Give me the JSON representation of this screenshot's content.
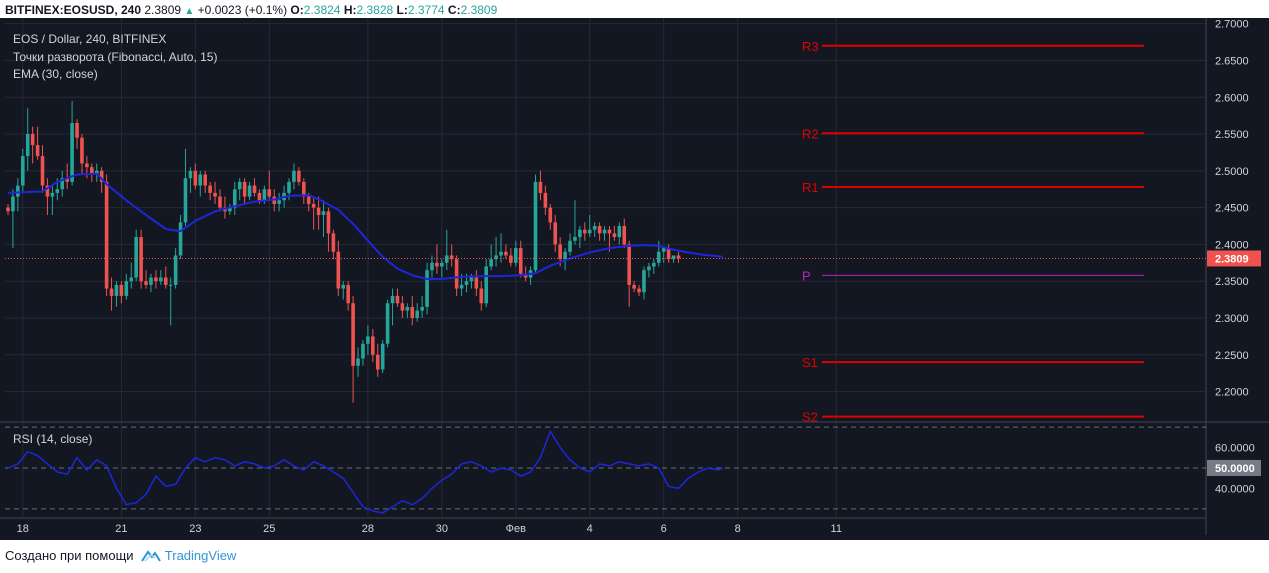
{
  "header": {
    "symbol": "BITFINEX:EOSUSD, 240",
    "last": "2.3809",
    "change": "+0.0023 (+0.1%)",
    "o_label": "O:",
    "o_val": "2.3824",
    "h_label": "H:",
    "h_val": "2.3828",
    "l_label": "L:",
    "l_val": "2.3774",
    "c_label": "C:",
    "c_val": "2.3809"
  },
  "overlay": {
    "line1": "EOS / Dollar, 240, BITFINEX",
    "line2": "Точки разворота (Fibonacci, Auto, 15)",
    "line3": "EMA (30, close)",
    "rsi_title": "RSI (14, close)"
  },
  "footer": {
    "created_with": "Создано при помощи",
    "brand": "TradingView"
  },
  "colors": {
    "background": "#131722",
    "up": "#26a69a",
    "down": "#ef5350",
    "ema": "#1e26d8",
    "rsi": "#1e26d8",
    "pivot_rs": "#e00000",
    "pivot_p": "#c020c0",
    "price_tag": "#ef5350",
    "rsi_tag": "#787b86"
  },
  "chart_data": {
    "type": "candlestick",
    "title": "EOS / Dollar, 240, BITFINEX",
    "price_axis": {
      "range": [
        2.16,
        2.705
      ],
      "ticks": [
        "2.7000",
        "2.6500",
        "2.6000",
        "2.5500",
        "2.5000",
        "2.4500",
        "2.4000",
        "2.3500",
        "2.3000",
        "2.2500",
        "2.2000"
      ],
      "tick_values": [
        2.7,
        2.65,
        2.6,
        2.55,
        2.5,
        2.45,
        2.4,
        2.35,
        2.3,
        2.25,
        2.2
      ]
    },
    "time_axis": {
      "labels": [
        "18",
        "21",
        "23",
        "25",
        "28",
        "30",
        "Фев",
        "4",
        "6",
        "8",
        "11"
      ],
      "label_index": [
        3,
        23,
        38,
        53,
        73,
        88,
        103,
        118,
        133,
        148,
        168
      ]
    },
    "last_price": 2.3809,
    "last_price_label": "2.3809",
    "pivots": [
      {
        "label": "R3",
        "value": 2.67
      },
      {
        "label": "R2",
        "value": 2.551
      },
      {
        "label": "R1",
        "value": 2.478
      },
      {
        "label": "P",
        "value": 2.358
      },
      {
        "label": "S1",
        "value": 2.24
      },
      {
        "label": "S2",
        "value": 2.166
      }
    ],
    "candles": [
      [
        2.45,
        2.455,
        2.44,
        2.445
      ],
      [
        2.445,
        2.475,
        2.395,
        2.465
      ],
      [
        2.465,
        2.49,
        2.445,
        2.48
      ],
      [
        2.48,
        2.53,
        2.47,
        2.52
      ],
      [
        2.52,
        2.585,
        2.5,
        2.55
      ],
      [
        2.55,
        2.56,
        2.51,
        2.535
      ],
      [
        2.535,
        2.56,
        2.515,
        2.52
      ],
      [
        2.52,
        2.535,
        2.47,
        2.48
      ],
      [
        2.48,
        2.49,
        2.44,
        2.465
      ],
      [
        2.465,
        2.48,
        2.44,
        2.47
      ],
      [
        2.47,
        2.49,
        2.46,
        2.475
      ],
      [
        2.475,
        2.5,
        2.465,
        2.49
      ],
      [
        2.49,
        2.51,
        2.475,
        2.485
      ],
      [
        2.485,
        2.595,
        2.48,
        2.565
      ],
      [
        2.565,
        2.57,
        2.53,
        2.545
      ],
      [
        2.545,
        2.55,
        2.495,
        2.51
      ],
      [
        2.51,
        2.52,
        2.49,
        2.505
      ],
      [
        2.505,
        2.51,
        2.485,
        2.495
      ],
      [
        2.495,
        2.51,
        2.485,
        2.5
      ],
      [
        2.5,
        2.505,
        2.47,
        2.485
      ],
      [
        2.485,
        2.495,
        2.33,
        2.34
      ],
      [
        2.34,
        2.355,
        2.31,
        2.33
      ],
      [
        2.33,
        2.35,
        2.315,
        2.345
      ],
      [
        2.345,
        2.35,
        2.32,
        2.33
      ],
      [
        2.33,
        2.36,
        2.325,
        2.35
      ],
      [
        2.35,
        2.375,
        2.34,
        2.355
      ],
      [
        2.355,
        2.42,
        2.35,
        2.41
      ],
      [
        2.41,
        2.42,
        2.34,
        2.35
      ],
      [
        2.35,
        2.365,
        2.34,
        2.345
      ],
      [
        2.345,
        2.36,
        2.335,
        2.355
      ],
      [
        2.355,
        2.365,
        2.34,
        2.35
      ],
      [
        2.35,
        2.365,
        2.345,
        2.355
      ],
      [
        2.355,
        2.37,
        2.34,
        2.345
      ],
      [
        2.345,
        2.355,
        2.29,
        2.345
      ],
      [
        2.345,
        2.395,
        2.34,
        2.385
      ],
      [
        2.385,
        2.44,
        2.38,
        2.43
      ],
      [
        2.43,
        2.53,
        2.425,
        2.49
      ],
      [
        2.49,
        2.505,
        2.47,
        2.5
      ],
      [
        2.5,
        2.51,
        2.475,
        2.48
      ],
      [
        2.48,
        2.5,
        2.465,
        2.495
      ],
      [
        2.495,
        2.5,
        2.47,
        2.48
      ],
      [
        2.48,
        2.485,
        2.46,
        2.47
      ],
      [
        2.47,
        2.485,
        2.455,
        2.465
      ],
      [
        2.465,
        2.475,
        2.445,
        2.45
      ],
      [
        2.45,
        2.465,
        2.435,
        2.445
      ],
      [
        2.445,
        2.455,
        2.44,
        2.45
      ],
      [
        2.45,
        2.485,
        2.44,
        2.475
      ],
      [
        2.475,
        2.49,
        2.46,
        2.485
      ],
      [
        2.485,
        2.49,
        2.455,
        2.465
      ],
      [
        2.465,
        2.485,
        2.46,
        2.48
      ],
      [
        2.48,
        2.49,
        2.465,
        2.47
      ],
      [
        2.47,
        2.475,
        2.455,
        2.46
      ],
      [
        2.46,
        2.48,
        2.455,
        2.475
      ],
      [
        2.475,
        2.5,
        2.46,
        2.465
      ],
      [
        2.465,
        2.475,
        2.445,
        2.455
      ],
      [
        2.455,
        2.47,
        2.445,
        2.46
      ],
      [
        2.46,
        2.48,
        2.45,
        2.47
      ],
      [
        2.47,
        2.49,
        2.46,
        2.485
      ],
      [
        2.485,
        2.51,
        2.475,
        2.5
      ],
      [
        2.5,
        2.505,
        2.48,
        2.485
      ],
      [
        2.485,
        2.49,
        2.455,
        2.465
      ],
      [
        2.465,
        2.47,
        2.445,
        2.455
      ],
      [
        2.455,
        2.465,
        2.42,
        2.45
      ],
      [
        2.45,
        2.465,
        2.42,
        2.44
      ],
      [
        2.44,
        2.46,
        2.41,
        2.445
      ],
      [
        2.445,
        2.45,
        2.39,
        2.415
      ],
      [
        2.415,
        2.42,
        2.38,
        2.39
      ],
      [
        2.39,
        2.405,
        2.33,
        2.34
      ],
      [
        2.34,
        2.35,
        2.325,
        2.345
      ],
      [
        2.345,
        2.35,
        2.31,
        2.32
      ],
      [
        2.32,
        2.33,
        2.185,
        2.235
      ],
      [
        2.235,
        2.26,
        2.22,
        2.245
      ],
      [
        2.245,
        2.27,
        2.235,
        2.265
      ],
      [
        2.265,
        2.29,
        2.25,
        2.275
      ],
      [
        2.275,
        2.285,
        2.24,
        2.25
      ],
      [
        2.25,
        2.265,
        2.22,
        2.23
      ],
      [
        2.23,
        2.27,
        2.225,
        2.265
      ],
      [
        2.265,
        2.325,
        2.26,
        2.32
      ],
      [
        2.32,
        2.34,
        2.29,
        2.33
      ],
      [
        2.33,
        2.34,
        2.315,
        2.32
      ],
      [
        2.32,
        2.33,
        2.3,
        2.31
      ],
      [
        2.31,
        2.32,
        2.3,
        2.315
      ],
      [
        2.315,
        2.33,
        2.29,
        2.3
      ],
      [
        2.3,
        2.32,
        2.295,
        2.31
      ],
      [
        2.31,
        2.33,
        2.3,
        2.315
      ],
      [
        2.315,
        2.375,
        2.305,
        2.365
      ],
      [
        2.365,
        2.385,
        2.355,
        2.375
      ],
      [
        2.375,
        2.4,
        2.36,
        2.37
      ],
      [
        2.37,
        2.38,
        2.355,
        2.375
      ],
      [
        2.375,
        2.42,
        2.365,
        2.385
      ],
      [
        2.385,
        2.4,
        2.37,
        2.38
      ],
      [
        2.38,
        2.385,
        2.33,
        2.34
      ],
      [
        2.34,
        2.36,
        2.33,
        2.345
      ],
      [
        2.345,
        2.36,
        2.335,
        2.35
      ],
      [
        2.35,
        2.36,
        2.34,
        2.355
      ],
      [
        2.355,
        2.365,
        2.33,
        2.34
      ],
      [
        2.34,
        2.35,
        2.31,
        2.32
      ],
      [
        2.32,
        2.38,
        2.315,
        2.37
      ],
      [
        2.37,
        2.4,
        2.365,
        2.38
      ],
      [
        2.38,
        2.41,
        2.37,
        2.385
      ],
      [
        2.385,
        2.415,
        2.375,
        2.39
      ],
      [
        2.39,
        2.4,
        2.38,
        2.385
      ],
      [
        2.385,
        2.395,
        2.37,
        2.375
      ],
      [
        2.375,
        2.405,
        2.37,
        2.395
      ],
      [
        2.395,
        2.405,
        2.355,
        2.36
      ],
      [
        2.36,
        2.37,
        2.35,
        2.355
      ],
      [
        2.355,
        2.37,
        2.345,
        2.365
      ],
      [
        2.365,
        2.495,
        2.36,
        2.485
      ],
      [
        2.485,
        2.5,
        2.46,
        2.47
      ],
      [
        2.47,
        2.48,
        2.44,
        2.45
      ],
      [
        2.45,
        2.455,
        2.42,
        2.43
      ],
      [
        2.43,
        2.44,
        2.39,
        2.4
      ],
      [
        2.4,
        2.41,
        2.37,
        2.38
      ],
      [
        2.38,
        2.395,
        2.365,
        2.39
      ],
      [
        2.39,
        2.415,
        2.385,
        2.405
      ],
      [
        2.405,
        2.46,
        2.4,
        2.41
      ],
      [
        2.41,
        2.425,
        2.395,
        2.42
      ],
      [
        2.42,
        2.43,
        2.405,
        2.415
      ],
      [
        2.415,
        2.44,
        2.41,
        2.42
      ],
      [
        2.42,
        2.43,
        2.41,
        2.425
      ],
      [
        2.425,
        2.43,
        2.405,
        2.415
      ],
      [
        2.415,
        2.425,
        2.405,
        2.42
      ],
      [
        2.42,
        2.425,
        2.39,
        2.415
      ],
      [
        2.415,
        2.425,
        2.405,
        2.41
      ],
      [
        2.41,
        2.43,
        2.4,
        2.425
      ],
      [
        2.425,
        2.435,
        2.395,
        2.4
      ],
      [
        2.4,
        2.405,
        2.315,
        2.345
      ],
      [
        2.345,
        2.35,
        2.335,
        2.34
      ],
      [
        2.34,
        2.345,
        2.33,
        2.335
      ],
      [
        2.335,
        2.37,
        2.325,
        2.365
      ],
      [
        2.365,
        2.375,
        2.355,
        2.37
      ],
      [
        2.37,
        2.38,
        2.36,
        2.375
      ],
      [
        2.375,
        2.405,
        2.37,
        2.39
      ],
      [
        2.39,
        2.395,
        2.375,
        2.395
      ],
      [
        2.395,
        2.4,
        2.375,
        2.38
      ],
      [
        2.38,
        2.385,
        2.375,
        2.385
      ],
      [
        2.385,
        2.39,
        2.375,
        2.381
      ]
    ],
    "ema": [
      [
        0,
        2.47
      ],
      [
        7,
        2.472
      ],
      [
        10,
        2.485
      ],
      [
        14,
        2.495
      ],
      [
        18,
        2.496
      ],
      [
        20,
        2.482
      ],
      [
        24,
        2.46
      ],
      [
        28,
        2.44
      ],
      [
        32,
        2.421
      ],
      [
        35,
        2.418
      ],
      [
        38,
        2.432
      ],
      [
        42,
        2.445
      ],
      [
        46,
        2.452
      ],
      [
        50,
        2.458
      ],
      [
        54,
        2.461
      ],
      [
        57,
        2.466
      ],
      [
        61,
        2.467
      ],
      [
        64,
        2.458
      ],
      [
        67,
        2.447
      ],
      [
        70,
        2.428
      ],
      [
        73,
        2.405
      ],
      [
        76,
        2.383
      ],
      [
        79,
        2.367
      ],
      [
        82,
        2.358
      ],
      [
        85,
        2.353
      ],
      [
        88,
        2.353
      ],
      [
        92,
        2.356
      ],
      [
        96,
        2.357
      ],
      [
        100,
        2.357
      ],
      [
        104,
        2.358
      ],
      [
        107,
        2.361
      ],
      [
        110,
        2.371
      ],
      [
        114,
        2.381
      ],
      [
        118,
        2.389
      ],
      [
        122,
        2.395
      ],
      [
        126,
        2.398
      ],
      [
        129,
        2.399
      ],
      [
        132,
        2.398
      ],
      [
        135,
        2.393
      ],
      [
        138,
        2.389
      ],
      [
        141,
        2.386
      ],
      [
        144,
        2.384
      ],
      [
        145,
        2.383
      ]
    ],
    "rsi_axis": {
      "ticks": [
        "60.0000",
        "40.0000"
      ],
      "tick_values": [
        60,
        40
      ],
      "range": [
        26,
        72
      ],
      "bands": [
        70,
        50,
        30
      ]
    },
    "rsi_value_label": "50.0000",
    "rsi": [
      [
        0,
        50
      ],
      [
        2,
        52
      ],
      [
        4,
        58
      ],
      [
        6,
        56
      ],
      [
        8,
        52
      ],
      [
        10,
        48
      ],
      [
        12,
        47
      ],
      [
        14,
        55
      ],
      [
        16,
        49
      ],
      [
        18,
        54
      ],
      [
        20,
        51
      ],
      [
        22,
        40
      ],
      [
        24,
        32
      ],
      [
        26,
        33
      ],
      [
        28,
        37
      ],
      [
        30,
        46
      ],
      [
        32,
        41
      ],
      [
        34,
        42
      ],
      [
        36,
        50
      ],
      [
        38,
        55
      ],
      [
        40,
        53
      ],
      [
        42,
        55
      ],
      [
        44,
        54
      ],
      [
        46,
        51
      ],
      [
        48,
        53
      ],
      [
        50,
        52
      ],
      [
        52,
        50
      ],
      [
        54,
        51
      ],
      [
        56,
        54
      ],
      [
        58,
        51
      ],
      [
        60,
        49
      ],
      [
        62,
        53
      ],
      [
        64,
        51
      ],
      [
        66,
        48
      ],
      [
        68,
        45
      ],
      [
        70,
        38
      ],
      [
        72,
        31
      ],
      [
        74,
        29
      ],
      [
        76,
        28
      ],
      [
        78,
        31
      ],
      [
        80,
        34
      ],
      [
        82,
        32
      ],
      [
        84,
        35
      ],
      [
        86,
        40
      ],
      [
        88,
        44
      ],
      [
        90,
        47
      ],
      [
        92,
        52
      ],
      [
        94,
        53
      ],
      [
        96,
        51
      ],
      [
        98,
        48
      ],
      [
        100,
        50
      ],
      [
        102,
        49
      ],
      [
        104,
        46
      ],
      [
        106,
        48
      ],
      [
        108,
        55
      ],
      [
        110,
        68
      ],
      [
        112,
        60
      ],
      [
        114,
        54
      ],
      [
        116,
        50
      ],
      [
        118,
        48
      ],
      [
        120,
        52
      ],
      [
        122,
        51
      ],
      [
        124,
        53
      ],
      [
        126,
        52
      ],
      [
        128,
        51
      ],
      [
        130,
        52
      ],
      [
        132,
        50
      ],
      [
        134,
        41
      ],
      [
        136,
        40
      ],
      [
        138,
        45
      ],
      [
        140,
        48
      ],
      [
        142,
        50
      ],
      [
        144,
        49
      ],
      [
        145,
        50
      ]
    ]
  }
}
